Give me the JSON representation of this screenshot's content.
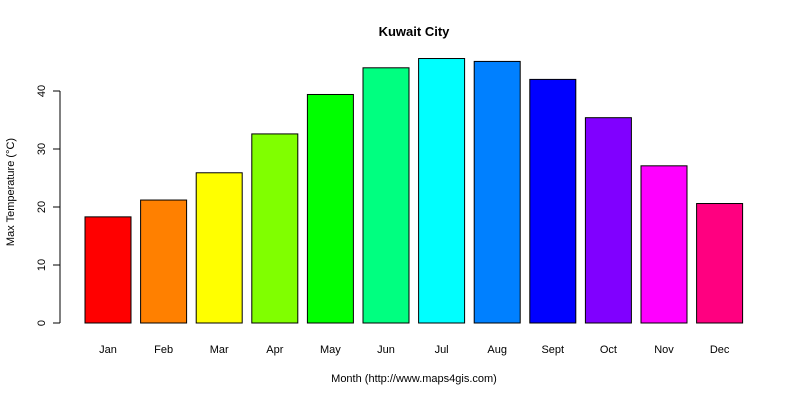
{
  "chart_data": {
    "type": "bar",
    "title": "Kuwait City",
    "xlabel": "Month (http://www.maps4gis.com)",
    "ylabel": "Max Temperature (°C)",
    "categories": [
      "Jan",
      "Feb",
      "Mar",
      "Apr",
      "May",
      "Jun",
      "Jul",
      "Aug",
      "Sept",
      "Oct",
      "Nov",
      "Dec"
    ],
    "values": [
      18.3,
      21.2,
      25.9,
      32.6,
      39.4,
      44.0,
      45.6,
      45.1,
      42.0,
      35.4,
      27.1,
      20.6
    ],
    "colors": [
      "#ff0000",
      "#ff8000",
      "#ffff00",
      "#80ff00",
      "#00ff00",
      "#00ff80",
      "#00ffff",
      "#0080ff",
      "#0000ff",
      "#8000ff",
      "#ff00ff",
      "#ff0080"
    ],
    "yticks": [
      0,
      10,
      20,
      30,
      40
    ],
    "ylim": [
      0,
      47.5
    ],
    "grid": false,
    "legend": "none"
  }
}
